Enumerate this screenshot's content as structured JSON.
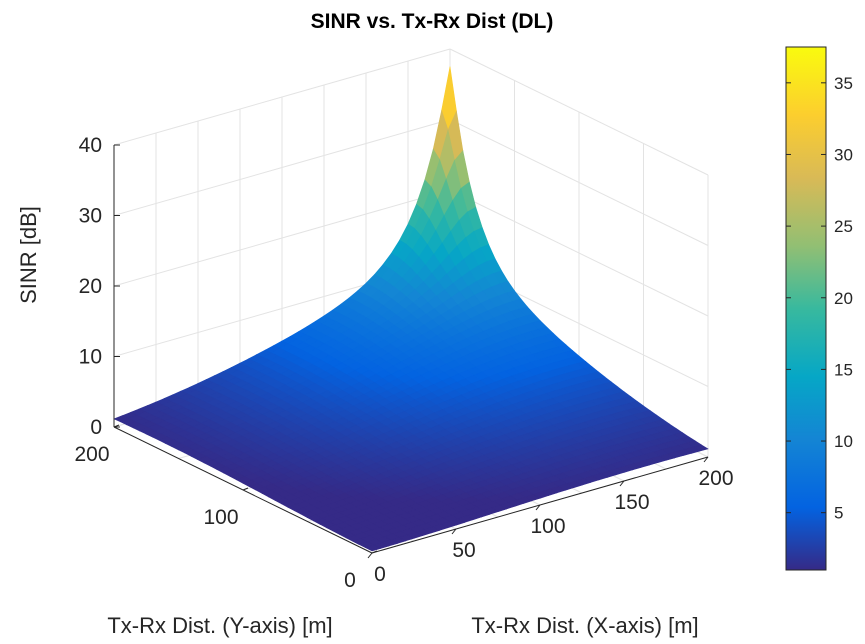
{
  "chart_data": {
    "type": "surface",
    "title": "SINR vs. Tx-Rx Dist (DL)",
    "xlabel": "Tx-Rx Dist. (X-axis) [m]",
    "ylabel": "Tx-Rx Dist. (Y-axis) [m]",
    "zlabel": "SINR [dB]",
    "xlim": [
      0,
      200
    ],
    "ylim": [
      0,
      200
    ],
    "zlim": [
      0,
      40
    ],
    "x_ticks": [
      "0",
      "50",
      "100",
      "150",
      "200"
    ],
    "y_ticks": [
      "0",
      "100",
      "200"
    ],
    "z_ticks": [
      "0",
      "10",
      "20",
      "30",
      "40"
    ],
    "grid": true,
    "colormap": "parula",
    "colorbar": {
      "clim": [
        1,
        37.5
      ],
      "ticks": [
        "5",
        "10",
        "15",
        "20",
        "25",
        "30",
        "35"
      ]
    },
    "surface_samples": [
      {
        "x": 0,
        "y": 0,
        "z": 1
      },
      {
        "x": 0,
        "y": 200,
        "z": 0
      },
      {
        "x": 200,
        "y": 0,
        "z": 0
      },
      {
        "x": 100,
        "y": 100,
        "z": 6
      },
      {
        "x": 200,
        "y": 100,
        "z": 9
      },
      {
        "x": 100,
        "y": 200,
        "z": 9
      },
      {
        "x": 160,
        "y": 200,
        "z": 11
      },
      {
        "x": 200,
        "y": 160,
        "z": 11
      },
      {
        "x": 180,
        "y": 180,
        "z": 15
      },
      {
        "x": 190,
        "y": 190,
        "z": 20
      },
      {
        "x": 196,
        "y": 196,
        "z": 27
      },
      {
        "x": 200,
        "y": 200,
        "z": 37
      }
    ]
  }
}
